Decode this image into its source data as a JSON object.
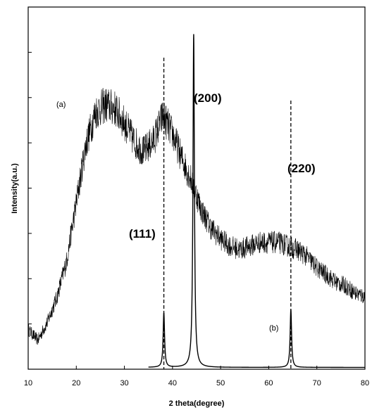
{
  "chart_data": {
    "type": "line",
    "xlabel": "2 theta(degree)",
    "ylabel": "Intensity(a.u.)",
    "xlim": [
      10,
      80
    ],
    "ylim": [
      0,
      100
    ],
    "x_ticks": [
      10,
      20,
      30,
      40,
      50,
      60,
      70,
      80
    ],
    "y_tick_labels_shown": false,
    "grid": false,
    "legend": "none",
    "series": [
      {
        "label_text": "(a)",
        "style": "noisy-line",
        "color": "#000000",
        "x": [
          10,
          12,
          14,
          16,
          18,
          20,
          22,
          24,
          26,
          28,
          30,
          32,
          34,
          36,
          38,
          40,
          42,
          44,
          46,
          48,
          50,
          52,
          54,
          56,
          58,
          60,
          62,
          64,
          66,
          68,
          70,
          72,
          74,
          76,
          78,
          80
        ],
        "y": [
          11,
          8,
          13,
          20,
          30,
          46,
          62,
          71,
          73,
          72,
          68,
          63,
          60,
          63,
          70,
          65,
          58,
          52,
          44,
          39,
          36,
          34,
          33,
          34,
          35,
          35,
          35,
          34,
          33,
          31,
          28,
          26,
          24,
          23,
          21,
          20
        ]
      },
      {
        "label_text": "(b)",
        "style": "sharp-peaks",
        "color": "#000000",
        "baseline": 0.5,
        "peaks": [
          {
            "x": 38.2,
            "height": 15,
            "label": "(111)"
          },
          {
            "x": 44.4,
            "height": 92,
            "label": "(200)"
          },
          {
            "x": 64.6,
            "height": 16,
            "label": "(220)"
          }
        ]
      }
    ],
    "reference_lines": [
      {
        "x": 38.2,
        "style": "dashed"
      },
      {
        "x": 64.6,
        "style": "dashed"
      }
    ]
  }
}
